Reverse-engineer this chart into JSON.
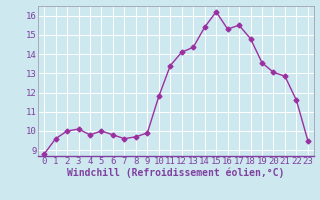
{
  "x": [
    0,
    1,
    2,
    3,
    4,
    5,
    6,
    7,
    8,
    9,
    10,
    11,
    12,
    13,
    14,
    15,
    16,
    17,
    18,
    19,
    20,
    21,
    22,
    23
  ],
  "y": [
    8.8,
    9.6,
    10.0,
    10.1,
    9.8,
    10.0,
    9.8,
    9.6,
    9.7,
    9.9,
    11.8,
    13.4,
    14.1,
    14.35,
    15.4,
    16.2,
    15.3,
    15.5,
    14.8,
    13.55,
    13.05,
    12.85,
    11.6,
    9.5
  ],
  "line_color": "#9b30a0",
  "marker": "D",
  "markersize": 2.5,
  "linewidth": 1.0,
  "xlabel": "Windchill (Refroidissement éolien,°C)",
  "xlabel_fontsize": 7,
  "ylim": [
    8.7,
    16.5
  ],
  "xlim": [
    -0.5,
    23.5
  ],
  "yticks": [
    9,
    10,
    11,
    12,
    13,
    14,
    15,
    16
  ],
  "xticks": [
    0,
    1,
    2,
    3,
    4,
    5,
    6,
    7,
    8,
    9,
    10,
    11,
    12,
    13,
    14,
    15,
    16,
    17,
    18,
    19,
    20,
    21,
    22,
    23
  ],
  "tick_fontsize": 6.5,
  "bg_color": "#cde8ef",
  "grid_color": "#ffffff",
  "spine_color": "#8040a0",
  "axis_line_color": "#a0a0b0"
}
